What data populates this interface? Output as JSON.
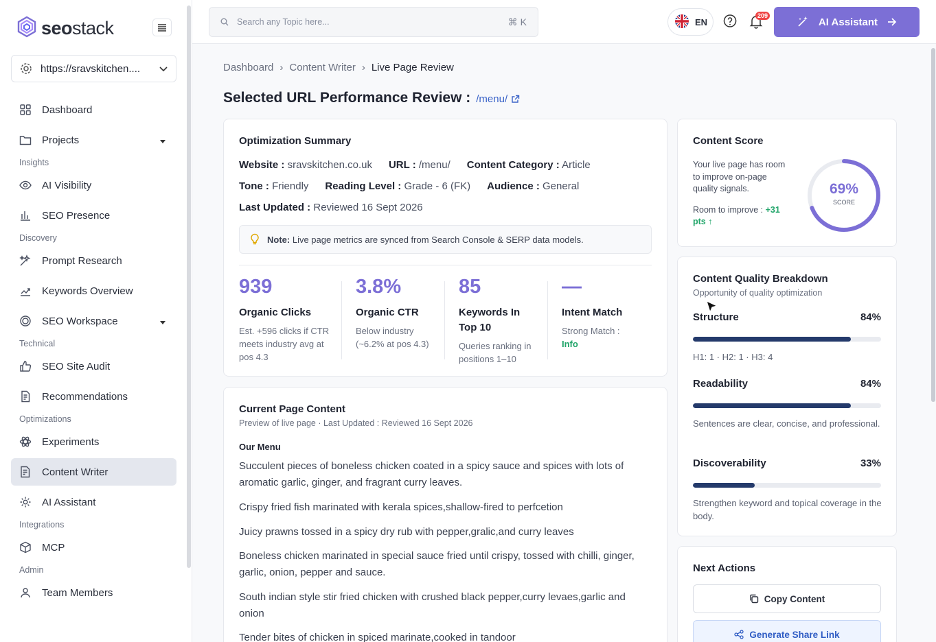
{
  "app": {
    "logo_text_bold": "seo",
    "logo_text_rest": "stack",
    "site_url": "https://sravskitchen....",
    "search_placeholder": "Search any Topic here...",
    "search_shortcut": "⌘ K",
    "lang": "EN",
    "notif_count": "209",
    "ai_button": "AI Assistant"
  },
  "sidebar": {
    "items": [
      {
        "label": "Dashboard",
        "icon": "grid-icon"
      },
      {
        "label": "Projects",
        "icon": "folder-icon"
      },
      {
        "section": "Insights"
      },
      {
        "label": "AI Visibility",
        "icon": "eye-icon"
      },
      {
        "label": "SEO Presence",
        "icon": "bar-chart-icon"
      },
      {
        "section": "Discovery"
      },
      {
        "label": "Prompt Research",
        "icon": "sparkle-icon"
      },
      {
        "label": "Keywords Overview",
        "icon": "trend-icon"
      },
      {
        "label": "SEO Workspace",
        "icon": "workspace-icon"
      },
      {
        "section": "Technical"
      },
      {
        "label": "SEO Site Audit",
        "icon": "thumb-up-icon"
      },
      {
        "label": "Recommendations",
        "icon": "document-icon"
      },
      {
        "section": "Optimizations"
      },
      {
        "label": "Experiments",
        "icon": "atom-icon"
      },
      {
        "label": "Content Writer",
        "icon": "document-edit-icon",
        "active": true
      },
      {
        "label": "AI Assistant",
        "icon": "gear-icon"
      },
      {
        "section": "Integrations"
      },
      {
        "label": "MCP",
        "icon": "cube-icon"
      },
      {
        "section": "Admin"
      },
      {
        "label": "Team Members",
        "icon": "team-icon"
      }
    ]
  },
  "breadcrumb": [
    "Dashboard",
    "Content Writer",
    "Live Page Review"
  ],
  "page": {
    "title": "Selected URL Performance Review :",
    "url_link": "/menu/"
  },
  "summary": {
    "title": "Optimization Summary",
    "website_label": "Website :",
    "website": "sravskitchen.co.uk",
    "url_label": "URL :",
    "url": "/menu/",
    "category_label": "Content Category :",
    "category": "Article",
    "tone_label": "Tone :",
    "tone": "Friendly",
    "reading_label": "Reading Level :",
    "reading": "Grade - 6 (FK)",
    "audience_label": "Audience :",
    "audience": "General",
    "updated_label": "Last Updated :",
    "updated": "Reviewed 16 Sept 2026",
    "note_label": "Note:",
    "note_text": "Live page metrics are synced from Search Console & SERP data models.",
    "metrics": [
      {
        "value": "939",
        "label": "Organic Clicks",
        "desc": "Est. +596 clicks if CTR meets industry avg at pos 4.3"
      },
      {
        "value": "3.8%",
        "label": "Organic CTR",
        "desc": "Below industry (~6.2% at pos 4.3)"
      },
      {
        "value": "85",
        "label": "Keywords In Top 10",
        "desc": "Queries ranking in positions 1–10"
      },
      {
        "value": "—",
        "label": "Intent Match",
        "desc": "Strong Match :",
        "desc_status": "Info"
      }
    ]
  },
  "content": {
    "title": "Current Page Content",
    "subtitle": "Preview of live page · Last Updated : Reviewed 16 Sept 2026",
    "heading": "Our Menu",
    "paragraphs": [
      "Succulent pieces of boneless chicken coated in a spicy sauce and spices with lots of aromatic garlic, ginger, and fragrant curry leaves.",
      "Crispy fried fish marinated with kerala spices,shallow-fired to perfcetion",
      "Juicy prawns tossed in a spicy dry rub with pepper,gralic,and curry leaves",
      "Boneless chicken marinated in special sauce fried until crispy, tossed with chilli, ginger, garlic, onion, pepper and sauce.",
      "South indian style stir fried chicken with crushed black pepper,curry levaes,garlic and onion",
      "Tender bites of chicken in spiced marinate,cooked in tandoor"
    ]
  },
  "score": {
    "title": "Content Score",
    "text": "Your live page has room to improve on-page quality signals.",
    "improve_label": "Room to improve :",
    "improve_value": "+31 pts ↑",
    "percent": 69,
    "percent_label": "69%",
    "score_label": "SCORE",
    "ring_color": "#7c6fd6"
  },
  "quality": {
    "title": "Content Quality Breakdown",
    "subtitle": "Opportunity of quality optimization",
    "rows": [
      {
        "name": "Structure",
        "value_label": "84%",
        "value": 0.84,
        "desc": "H1: 1 · H2: 1 · H3: 4"
      },
      {
        "name": "Readability",
        "value_label": "84%",
        "value": 0.84,
        "desc": "Sentences are clear, concise, and professional."
      },
      {
        "name": "Discoverability",
        "value_label": "33%",
        "value": 0.33,
        "desc": "Strengthen keyword and topical coverage in the body."
      }
    ]
  },
  "actions": {
    "title": "Next Actions",
    "copy": "Copy Content",
    "share": "Generate Share Link"
  }
}
